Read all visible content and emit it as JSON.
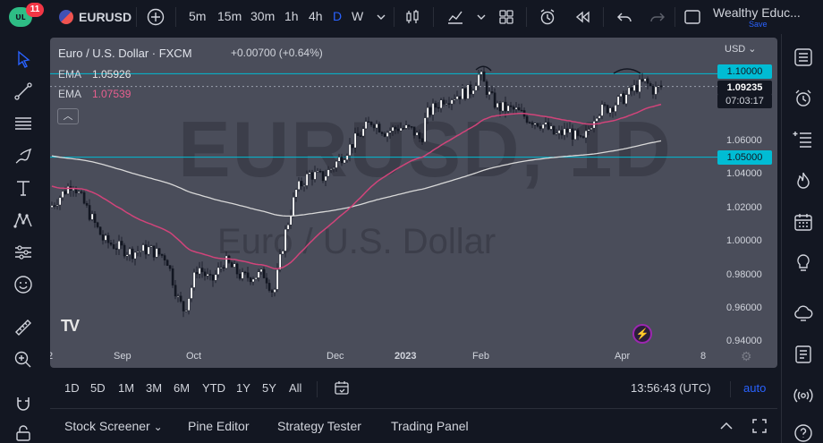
{
  "topbar": {
    "notification_count": "11",
    "symbol": "EURUSD",
    "intervals": [
      "5m",
      "15m",
      "30m",
      "1h",
      "4h",
      "D",
      "W"
    ],
    "active_interval": "D",
    "account_name": "Wealthy Educ...",
    "save_label": "Save"
  },
  "chart": {
    "title": "Euro / U.S. Dollar · FXCM",
    "change": "+0.00700 (+0.64%)",
    "ema1_label": "EMA",
    "ema1_value": "1.05926",
    "ema2_label": "EMA",
    "ema2_value": "1.07539",
    "watermark_symbol": "EURUSD, 1D",
    "watermark_name": "Euro / U.S. Dollar",
    "currency": "USD",
    "price_ticks": [
      "1.06000",
      "1.04000",
      "1.02000",
      "1.00000",
      "0.98000",
      "0.96000",
      "0.94000"
    ],
    "level_upper": "1.10000",
    "level_lower": "1.05000",
    "last_price": "1.09235",
    "countdown": "07:03:17",
    "time_ticks": [
      "2",
      "Sep",
      "Oct",
      "Dec",
      "2023",
      "Feb",
      "Apr",
      "8"
    ],
    "colors": {
      "up": "#ffffff",
      "down": "#131722",
      "ema_fast": "#d1447a",
      "ema_slow": "#d9d9d9",
      "hline": "#00bcd4",
      "price_box": "#131722"
    }
  },
  "rangebar": {
    "ranges": [
      "1D",
      "5D",
      "1M",
      "3M",
      "6M",
      "YTD",
      "1Y",
      "5Y",
      "All"
    ],
    "time": "13:56:43 (UTC)",
    "auto": "auto"
  },
  "bottombar": {
    "stock_screener": "Stock Screener",
    "pine_editor": "Pine Editor",
    "strategy_tester": "Strategy Tester",
    "trading_panel": "Trading Panel"
  }
}
